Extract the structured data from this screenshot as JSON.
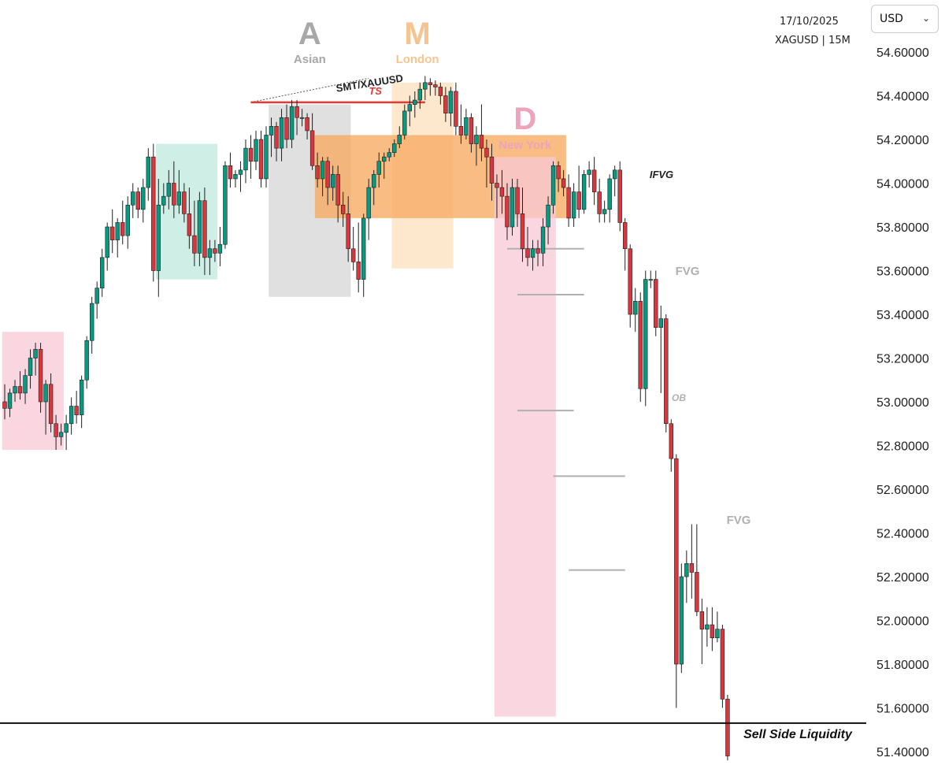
{
  "header": {
    "date": "17/10/2025",
    "symbol": "XAGUSD | 15M"
  },
  "currency": {
    "selected": "USD",
    "icon": "chevron-down-icon"
  },
  "chart_data": {
    "type": "candlestick",
    "yaxis_side": "right",
    "ylim": [
      51.35,
      54.7
    ],
    "yticks": [
      "54.60000",
      "54.40000",
      "54.20000",
      "54.00000",
      "53.80000",
      "53.60000",
      "53.40000",
      "53.20000",
      "53.00000",
      "52.80000",
      "52.60000",
      "52.40000",
      "52.20000",
      "52.00000",
      "51.80000",
      "51.60000",
      "51.40000"
    ],
    "ytick_values": [
      54.6,
      54.4,
      54.2,
      54.0,
      53.8,
      53.6,
      53.4,
      53.2,
      53.0,
      52.8,
      52.6,
      52.4,
      52.2,
      52.0,
      51.8,
      51.6,
      51.4
    ],
    "colors": {
      "bull": "#089981",
      "bear": "#d9363e",
      "session_asian": "#9e9e9e",
      "session_london": "#f7b577",
      "session_newyork": "#f2a3b8"
    },
    "candles": [
      [
        53.0,
        53.08,
        52.92,
        52.97
      ],
      [
        52.97,
        53.06,
        52.93,
        53.04
      ],
      [
        53.04,
        53.1,
        53.0,
        53.07
      ],
      [
        53.07,
        53.14,
        53.01,
        53.04
      ],
      [
        53.04,
        53.15,
        52.99,
        53.12
      ],
      [
        53.12,
        53.24,
        53.06,
        53.2
      ],
      [
        53.2,
        53.27,
        53.12,
        53.24
      ],
      [
        53.24,
        53.27,
        52.95,
        53.0
      ],
      [
        53.0,
        53.1,
        52.85,
        53.08
      ],
      [
        53.08,
        53.13,
        52.86,
        52.9
      ],
      [
        52.9,
        52.94,
        52.78,
        52.84
      ],
      [
        52.84,
        52.9,
        52.8,
        52.86
      ],
      [
        52.86,
        52.94,
        52.78,
        52.9
      ],
      [
        52.9,
        53.02,
        52.85,
        52.98
      ],
      [
        52.98,
        53.05,
        52.9,
        52.94
      ],
      [
        52.94,
        53.12,
        52.88,
        53.1
      ],
      [
        53.1,
        53.3,
        53.06,
        53.28
      ],
      [
        53.28,
        53.48,
        53.22,
        53.45
      ],
      [
        53.45,
        53.55,
        53.38,
        53.52
      ],
      [
        53.52,
        53.7,
        53.48,
        53.66
      ],
      [
        53.66,
        53.82,
        53.6,
        53.8
      ],
      [
        53.8,
        53.88,
        53.68,
        53.74
      ],
      [
        53.74,
        53.84,
        53.66,
        53.82
      ],
      [
        53.82,
        53.92,
        53.72,
        53.76
      ],
      [
        53.76,
        53.94,
        53.7,
        53.9
      ],
      [
        53.9,
        54.0,
        53.84,
        53.96
      ],
      [
        53.96,
        53.98,
        53.84,
        53.88
      ],
      [
        53.88,
        54.02,
        53.82,
        53.98
      ],
      [
        53.98,
        54.16,
        53.92,
        54.12
      ],
      [
        54.12,
        54.18,
        53.55,
        53.6
      ],
      [
        53.6,
        54.02,
        53.48,
        53.9
      ],
      [
        53.9,
        54.0,
        53.86,
        53.94
      ],
      [
        53.94,
        54.06,
        53.88,
        54.0
      ],
      [
        54.0,
        54.1,
        53.84,
        53.9
      ],
      [
        53.9,
        54.06,
        53.86,
        53.96
      ],
      [
        53.96,
        54.0,
        53.82,
        53.86
      ],
      [
        53.86,
        53.98,
        53.7,
        53.76
      ],
      [
        53.76,
        53.92,
        53.62,
        53.68
      ],
      [
        53.68,
        53.96,
        53.62,
        53.92
      ],
      [
        53.92,
        53.98,
        53.58,
        53.66
      ],
      [
        53.66,
        53.74,
        53.58,
        53.7
      ],
      [
        53.7,
        53.74,
        53.64,
        53.68
      ],
      [
        53.68,
        53.8,
        53.62,
        53.72
      ],
      [
        53.72,
        54.1,
        53.7,
        54.08
      ],
      [
        54.08,
        54.14,
        53.98,
        54.02
      ],
      [
        54.02,
        54.06,
        53.98,
        54.04
      ],
      [
        54.04,
        54.1,
        53.96,
        54.06
      ],
      [
        54.06,
        54.2,
        54.0,
        54.16
      ],
      [
        54.16,
        54.22,
        54.02,
        54.1
      ],
      [
        54.1,
        54.24,
        54.06,
        54.2
      ],
      [
        54.2,
        54.24,
        53.98,
        54.02
      ],
      [
        54.02,
        54.26,
        53.98,
        54.22
      ],
      [
        54.22,
        54.3,
        54.12,
        54.26
      ],
      [
        54.26,
        54.28,
        54.1,
        54.16
      ],
      [
        54.16,
        54.34,
        54.1,
        54.3
      ],
      [
        54.3,
        54.36,
        54.16,
        54.2
      ],
      [
        54.2,
        54.38,
        54.16,
        54.35
      ],
      [
        54.35,
        54.38,
        54.22,
        54.3
      ],
      [
        54.3,
        54.34,
        54.26,
        54.3
      ],
      [
        54.3,
        54.32,
        54.2,
        54.24
      ],
      [
        54.24,
        54.32,
        54.06,
        54.08
      ],
      [
        54.08,
        54.14,
        53.98,
        54.02
      ],
      [
        54.02,
        54.12,
        53.94,
        54.1
      ],
      [
        54.1,
        54.12,
        53.9,
        53.98
      ],
      [
        53.98,
        54.08,
        53.92,
        54.04
      ],
      [
        54.04,
        54.08,
        53.82,
        53.9
      ],
      [
        53.9,
        53.96,
        53.8,
        53.86
      ],
      [
        53.86,
        53.94,
        53.64,
        53.7
      ],
      [
        53.7,
        53.8,
        53.6,
        53.64
      ],
      [
        53.64,
        53.82,
        53.5,
        53.56
      ],
      [
        53.56,
        53.86,
        53.48,
        53.84
      ],
      [
        53.84,
        54.02,
        53.74,
        53.98
      ],
      [
        53.98,
        54.06,
        53.9,
        54.04
      ],
      [
        54.04,
        54.14,
        53.98,
        54.1
      ],
      [
        54.1,
        54.14,
        54.02,
        54.12
      ],
      [
        54.12,
        54.16,
        54.1,
        54.14
      ],
      [
        54.14,
        54.2,
        54.12,
        54.18
      ],
      [
        54.18,
        54.26,
        54.16,
        54.22
      ],
      [
        54.22,
        54.36,
        54.2,
        54.33
      ],
      [
        54.33,
        54.4,
        54.26,
        54.36
      ],
      [
        54.36,
        54.42,
        54.3,
        54.38
      ],
      [
        54.38,
        54.46,
        54.34,
        54.43
      ],
      [
        54.43,
        54.49,
        54.38,
        54.46
      ],
      [
        54.46,
        54.48,
        54.4,
        54.45
      ],
      [
        54.45,
        54.47,
        54.4,
        54.44
      ],
      [
        54.44,
        54.46,
        54.36,
        54.4
      ],
      [
        54.4,
        54.44,
        54.28,
        54.32
      ],
      [
        54.32,
        54.44,
        54.26,
        54.42
      ],
      [
        54.42,
        54.46,
        54.22,
        54.26
      ],
      [
        54.26,
        54.36,
        54.18,
        54.22
      ],
      [
        54.22,
        54.34,
        54.2,
        54.3
      ],
      [
        54.3,
        54.32,
        54.14,
        54.18
      ],
      [
        54.18,
        54.26,
        54.08,
        54.22
      ],
      [
        54.22,
        54.36,
        54.1,
        54.16
      ],
      [
        54.16,
        54.2,
        53.98,
        54.12
      ],
      [
        54.12,
        54.18,
        53.92,
        54.0
      ],
      [
        54.0,
        54.04,
        53.84,
        53.98
      ],
      [
        53.98,
        54.06,
        53.86,
        53.94
      ],
      [
        53.94,
        54.0,
        53.74,
        53.8
      ],
      [
        53.8,
        54.02,
        53.76,
        53.98
      ],
      [
        53.98,
        54.02,
        53.8,
        53.86
      ],
      [
        53.86,
        53.98,
        53.64,
        53.7
      ],
      [
        53.7,
        53.8,
        53.62,
        53.66
      ],
      [
        53.66,
        53.74,
        53.6,
        53.7
      ],
      [
        53.7,
        53.74,
        53.62,
        53.68
      ],
      [
        53.68,
        53.84,
        53.62,
        53.8
      ],
      [
        53.8,
        53.94,
        53.72,
        53.9
      ],
      [
        53.9,
        54.1,
        53.86,
        54.08
      ],
      [
        54.08,
        54.1,
        53.96,
        54.02
      ],
      [
        54.02,
        54.06,
        53.94,
        53.98
      ],
      [
        53.98,
        54.04,
        53.8,
        53.84
      ],
      [
        53.84,
        54.0,
        53.8,
        53.96
      ],
      [
        53.96,
        54.08,
        53.84,
        53.88
      ],
      [
        53.88,
        54.06,
        53.86,
        54.04
      ],
      [
        54.04,
        54.1,
        53.98,
        54.06
      ],
      [
        54.06,
        54.12,
        53.9,
        53.96
      ],
      [
        53.96,
        54.02,
        53.82,
        53.86
      ],
      [
        53.86,
        53.92,
        53.82,
        53.88
      ],
      [
        53.88,
        54.04,
        53.82,
        54.02
      ],
      [
        54.02,
        54.08,
        53.94,
        54.06
      ],
      [
        54.06,
        54.1,
        53.78,
        53.82
      ],
      [
        53.82,
        53.84,
        53.6,
        53.7
      ],
      [
        53.7,
        53.72,
        53.34,
        53.4
      ],
      [
        53.4,
        53.52,
        53.32,
        53.46
      ],
      [
        53.46,
        53.5,
        53.0,
        53.06
      ],
      [
        53.06,
        53.6,
        52.98,
        53.56
      ],
      [
        53.56,
        53.6,
        53.52,
        53.56
      ],
      [
        53.56,
        53.6,
        53.3,
        53.34
      ],
      [
        53.34,
        53.44,
        53.04,
        53.38
      ],
      [
        53.38,
        53.4,
        52.86,
        52.9
      ],
      [
        52.9,
        52.92,
        52.68,
        52.74
      ],
      [
        52.74,
        52.76,
        51.6,
        51.8
      ],
      [
        51.8,
        52.26,
        51.76,
        52.2
      ],
      [
        52.2,
        52.32,
        52.08,
        52.26
      ],
      [
        52.26,
        52.44,
        52.1,
        52.22
      ],
      [
        52.22,
        52.44,
        52.02,
        52.04
      ],
      [
        52.04,
        52.1,
        51.8,
        51.96
      ],
      [
        51.96,
        52.06,
        51.88,
        51.98
      ],
      [
        51.98,
        52.06,
        51.86,
        51.92
      ],
      [
        51.92,
        52.04,
        51.9,
        51.96
      ],
      [
        51.96,
        51.98,
        51.6,
        51.64
      ],
      [
        51.64,
        51.66,
        51.36,
        51.38
      ]
    ],
    "boxes": [
      {
        "name": "premium-box",
        "color": "#f8c8d6",
        "x0": -0.5,
        "x1": 11.5,
        "y0": 52.78,
        "y1": 53.32
      },
      {
        "name": "range-box",
        "color": "#bfe9dd",
        "x0": 29.5,
        "x1": 41.5,
        "y0": 53.56,
        "y1": 54.18
      },
      {
        "name": "asian-session-box",
        "color": "#d6d6d6",
        "x0": 51.5,
        "x1": 67.5,
        "y0": 53.48,
        "y1": 54.36
      },
      {
        "name": "london-session-box",
        "color": "#fce0bd",
        "x0": 75.5,
        "x1": 87.5,
        "y0": 53.61,
        "y1": 54.46
      },
      {
        "name": "ifvg-zone",
        "color": "#f7ab61",
        "x0": 60.5,
        "x1": 109.5,
        "y0": 53.84,
        "y1": 54.22
      },
      {
        "name": "newyork-session-box",
        "color": "#f8c8d6",
        "x0": 95.5,
        "x1": 107.5,
        "y0": 51.56,
        "y1": 54.12
      }
    ],
    "levels": [
      {
        "name": "ts-level",
        "price": 54.37,
        "x0": 48,
        "x1": 82,
        "color": "#e53935",
        "width": 2.5,
        "dash": ""
      },
      {
        "name": "fvg-upper-line",
        "price": 53.7,
        "x0": 98,
        "x1": 113,
        "color": "#b0b0b0",
        "width": 2,
        "dash": ""
      },
      {
        "name": "fvg-lower-line",
        "price": 53.49,
        "x0": 100,
        "x1": 113,
        "color": "#b0b0b0",
        "width": 2,
        "dash": ""
      },
      {
        "name": "ob-line",
        "price": 52.96,
        "x0": 100,
        "x1": 111,
        "color": "#b0b0b0",
        "width": 2,
        "dash": ""
      },
      {
        "name": "fvg2-upper-line",
        "price": 52.66,
        "x0": 107,
        "x1": 121,
        "color": "#b0b0b0",
        "width": 2,
        "dash": ""
      },
      {
        "name": "fvg2-lower-line",
        "price": 52.23,
        "x0": 110,
        "x1": 121,
        "color": "#b0b0b0",
        "width": 2,
        "dash": ""
      }
    ],
    "smt_line": {
      "from": [
        48,
        54.37
      ],
      "to": [
        71,
        54.48
      ]
    },
    "sell_side_liquidity_price": 51.53,
    "sessions": [
      {
        "name": "asian-session-label",
        "letter": "A",
        "label": "Asian",
        "color": "#a8a8a8",
        "x": 59.5
      },
      {
        "name": "london-session-label",
        "letter": "M",
        "label": "London",
        "color": "#f7c38f",
        "x": 80.5
      },
      {
        "name": "newyork-session-label",
        "letter": "D",
        "label": "New York",
        "color": "#eda3b9",
        "x": 101.5
      }
    ],
    "annotations": {
      "smt": "SMT/XAUUSD",
      "ts": "TS",
      "ifvg": "IFVG",
      "fvg_upper": "FVG",
      "ob": "OB",
      "fvg_lower": "FVG",
      "sell_side_liquidity": "Sell Side Liquidity"
    }
  }
}
